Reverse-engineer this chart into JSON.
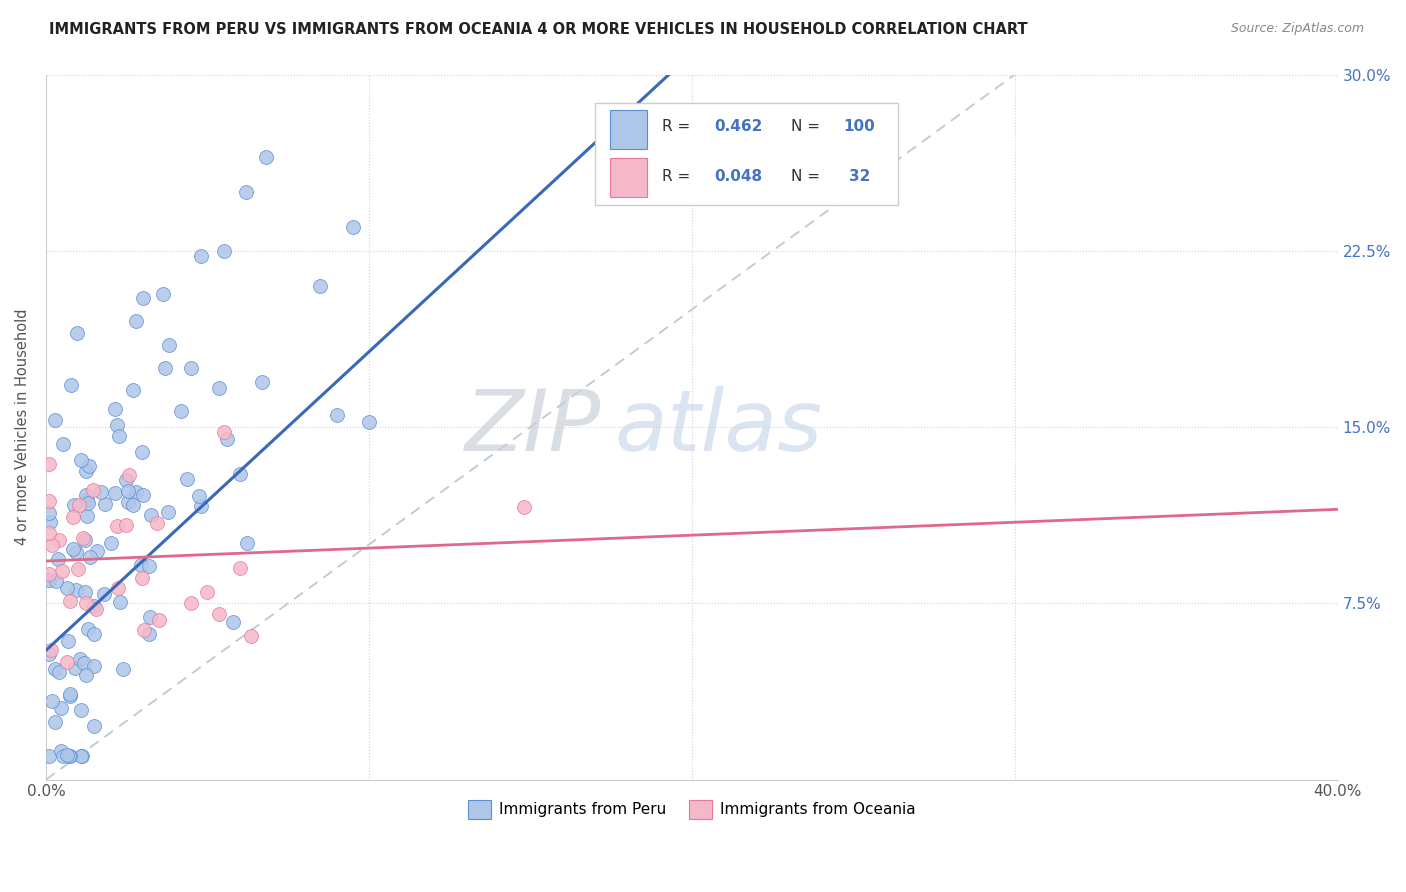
{
  "title": "IMMIGRANTS FROM PERU VS IMMIGRANTS FROM OCEANIA 4 OR MORE VEHICLES IN HOUSEHOLD CORRELATION CHART",
  "source": "Source: ZipAtlas.com",
  "ylabel": "4 or more Vehicles in Household",
  "xlim": [
    0.0,
    0.4
  ],
  "ylim": [
    0.0,
    0.3
  ],
  "legend_peru_label": "Immigrants from Peru",
  "legend_oceania_label": "Immigrants from Oceania",
  "peru_R": "0.462",
  "peru_N": "100",
  "oceania_R": "0.048",
  "oceania_N": "32",
  "peru_color": "#aec6e8",
  "peru_edge_color": "#5b8fd4",
  "peru_line_color": "#3a68b8",
  "oceania_color": "#f5b8c8",
  "oceania_edge_color": "#e87898",
  "oceania_line_color": "#e06888",
  "ref_line_color": "#c0c8d0",
  "background_color": "#ffffff",
  "grid_color": "#c8d4e8",
  "legend_R_color": "#4472c4",
  "legend_N_color": "#4472c4",
  "title_color": "#222222",
  "source_color": "#888888",
  "ylabel_color": "#555555",
  "tick_color": "#555555",
  "right_tick_color": "#4472c4"
}
